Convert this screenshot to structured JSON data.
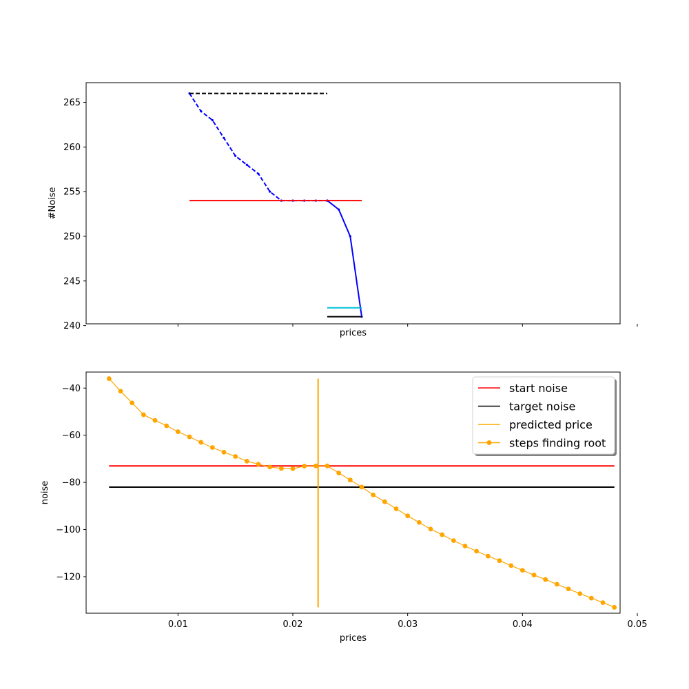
{
  "chart_data": [
    {
      "type": "line",
      "xlabel": "prices",
      "ylabel": "#Noise",
      "xlim": [
        0.002,
        0.0485
      ],
      "ylim": [
        240.2,
        267.2
      ],
      "yticks": [
        240,
        245,
        250,
        255,
        260,
        265
      ],
      "xticks": [
        0.01,
        0.02,
        0.03,
        0.04,
        0.05
      ],
      "show_xtick_labels": false,
      "grid": false,
      "series": [
        {
          "color": "#0000ff",
          "style": "dashed",
          "marker": "dot",
          "x": [
            0.011,
            0.012,
            0.013,
            0.014,
            0.015,
            0.016,
            0.017,
            0.018,
            0.019,
            0.02,
            0.021,
            0.022,
            0.023
          ],
          "y": [
            266,
            264,
            263,
            261,
            259,
            258,
            257,
            255,
            254,
            254,
            254,
            254,
            254
          ]
        },
        {
          "color": "#0000ff",
          "style": "solid",
          "marker": "dot",
          "x": [
            0.023,
            0.024,
            0.025,
            0.026
          ],
          "y": [
            254,
            253,
            250,
            241
          ]
        },
        {
          "color": "#000000",
          "style": "dashed",
          "x": [
            0.011,
            0.023
          ],
          "y": [
            266,
            266
          ]
        },
        {
          "color": "#ff0000",
          "style": "solid",
          "x": [
            0.011,
            0.026
          ],
          "y": [
            254,
            254
          ]
        },
        {
          "color": "#00bfd8",
          "style": "solid",
          "x": [
            0.023,
            0.026
          ],
          "y": [
            242,
            242
          ]
        },
        {
          "color": "#000000",
          "style": "solid",
          "x": [
            0.023,
            0.026
          ],
          "y": [
            241,
            241
          ]
        }
      ]
    },
    {
      "type": "line",
      "xlabel": "prices",
      "ylabel": "noise",
      "xlim": [
        0.002,
        0.0485
      ],
      "ylim": [
        -135.5,
        -33.2
      ],
      "yticks": [
        -40,
        -60,
        -80,
        -100,
        -120
      ],
      "xticks": [
        0.01,
        0.02,
        0.03,
        0.04,
        0.05
      ],
      "xtick_labels": [
        "0.01",
        "0.02",
        "0.03",
        "0.04",
        "0.05"
      ],
      "grid": false,
      "legend": {
        "placement": "top-right",
        "entries": [
          {
            "label": "start noise",
            "color": "#ff0000",
            "marker": false
          },
          {
            "label": "target noise",
            "color": "#000000",
            "marker": false
          },
          {
            "label": "predicted price",
            "color": "#ffa500",
            "marker": false
          },
          {
            "label": "steps finding root",
            "color": "#ffa500",
            "marker": true
          }
        ]
      },
      "series": [
        {
          "name": "start noise",
          "color": "#ff0000",
          "x": [
            0.004,
            0.048
          ],
          "y": [
            -73,
            -73
          ]
        },
        {
          "name": "target noise",
          "color": "#000000",
          "x": [
            0.004,
            0.048
          ],
          "y": [
            -82,
            -82
          ]
        },
        {
          "name": "predicted price",
          "color": "#ffa500",
          "x": [
            0.0222,
            0.0222
          ],
          "y": [
            -36,
            -133
          ]
        },
        {
          "name": "steps finding root",
          "color": "#ffa500",
          "marker": "circle",
          "x": [
            0.004,
            0.005,
            0.006,
            0.007,
            0.008,
            0.009,
            0.01,
            0.011,
            0.012,
            0.013,
            0.014,
            0.015,
            0.016,
            0.017,
            0.018,
            0.019,
            0.02,
            0.021,
            0.022,
            0.023,
            0.024,
            0.025,
            0.026,
            0.027,
            0.028,
            0.029,
            0.03,
            0.031,
            0.032,
            0.033,
            0.034,
            0.035,
            0.036,
            0.037,
            0.038,
            0.039,
            0.04,
            0.041,
            0.042,
            0.043,
            0.044,
            0.045,
            0.046,
            0.047,
            0.048
          ],
          "y": [
            -36,
            -41.3,
            -46.3,
            -51.3,
            -53.7,
            -56,
            -58.5,
            -60.7,
            -63,
            -65.2,
            -67.2,
            -69,
            -71,
            -72.3,
            -73.5,
            -74.1,
            -74.2,
            -73.1,
            -73,
            -73,
            -76,
            -79,
            -82,
            -85.3,
            -88.2,
            -91.2,
            -94.2,
            -97,
            -99.8,
            -102.2,
            -104.7,
            -107,
            -109.2,
            -111.3,
            -113.2,
            -115.3,
            -117.3,
            -119.3,
            -121.2,
            -123.2,
            -125.2,
            -127.2,
            -129.1,
            -131,
            -133
          ]
        }
      ]
    }
  ]
}
